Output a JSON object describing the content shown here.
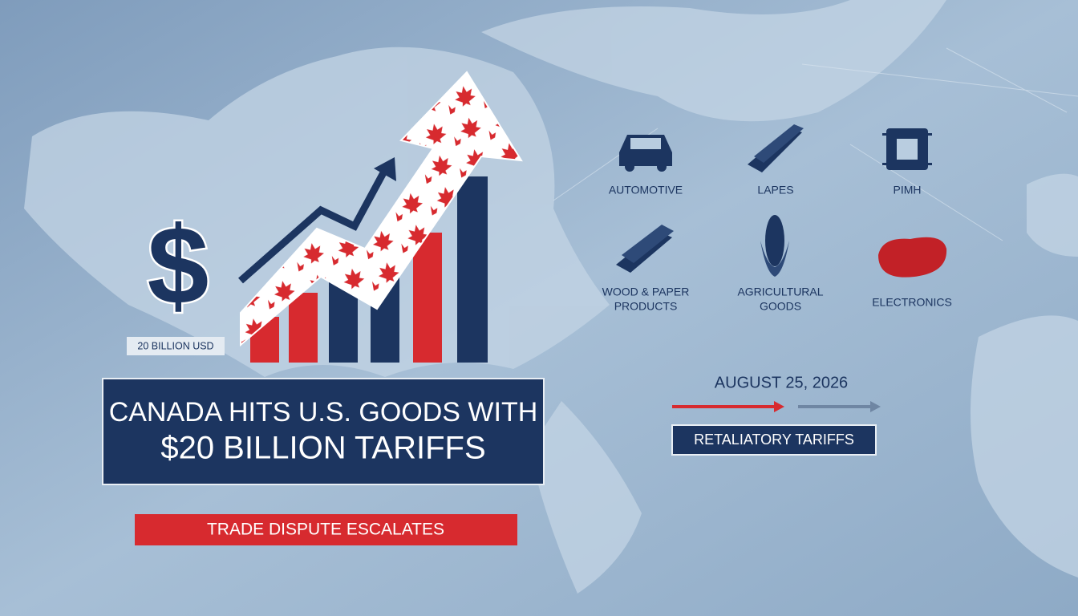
{
  "money_icon": "$",
  "amount_badge": "20 BILLION USD",
  "headline": {
    "lines": [
      "CANADA HITS U.S. GOODS WITH",
      "$20 BILLION TARIFFS"
    ]
  },
  "subheadline": "TRADE DISPUTE ESCALATES",
  "goods": [
    {
      "lines": [
        "AUTOMOTIVE"
      ]
    },
    {
      "lines": [
        "LAPES"
      ]
    },
    {
      "lines": [
        "PIMH"
      ]
    },
    {
      "lines": [
        "WOOD & PAPER",
        "PRODUCTS"
      ]
    },
    {
      "lines": [
        "AGRICULTURAL",
        "GOODS"
      ]
    },
    {
      "lines": [
        "ELECTRONICS"
      ]
    }
  ],
  "date": "AUGUST 25, 2026",
  "tag": "RETALIATORY TARIFFS"
}
